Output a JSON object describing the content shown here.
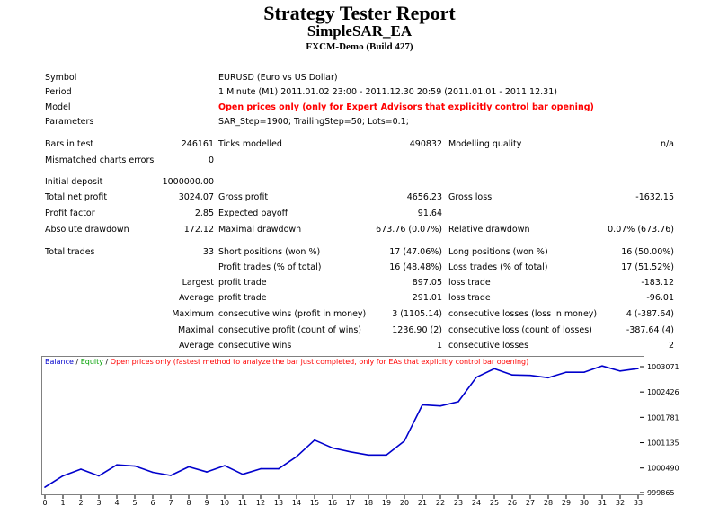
{
  "header": {
    "title": "Strategy Tester Report",
    "ea_name": "SimpleSAR_EA",
    "server": "FXCM-Demo (Build 427)"
  },
  "info": {
    "symbol_label": "Symbol",
    "symbol_value": "EURUSD (Euro vs US Dollar)",
    "period_label": "Period",
    "period_value": "1 Minute (M1) 2011.01.02 23:00 - 2011.12.30 20:59 (2011.01.01 - 2011.12.31)",
    "model_label": "Model",
    "model_value": "Open prices only (only for Expert Advisors that explicitly control bar opening)",
    "parameters_label": "Parameters",
    "parameters_value": "SAR_Step=1900; TrailingStep=50; Lots=0.1;"
  },
  "stats": {
    "bars_in_test_label": "Bars in test",
    "bars_in_test": "246161",
    "ticks_modelled_label": "Ticks modelled",
    "ticks_modelled": "490832",
    "modelling_quality_label": "Modelling quality",
    "modelling_quality": "n/a",
    "mismatched_label": "Mismatched charts errors",
    "mismatched": "0",
    "initial_deposit_label": "Initial deposit",
    "initial_deposit": "1000000.00",
    "total_net_profit_label": "Total net profit",
    "total_net_profit": "3024.07",
    "gross_profit_label": "Gross profit",
    "gross_profit": "4656.23",
    "gross_loss_label": "Gross loss",
    "gross_loss": "-1632.15",
    "profit_factor_label": "Profit factor",
    "profit_factor": "2.85",
    "expected_payoff_label": "Expected payoff",
    "expected_payoff": "91.64",
    "absolute_drawdown_label": "Absolute drawdown",
    "absolute_drawdown": "172.12",
    "maximal_drawdown_label": "Maximal drawdown",
    "maximal_drawdown": "673.76 (0.07%)",
    "relative_drawdown_label": "Relative drawdown",
    "relative_drawdown": "0.07% (673.76)",
    "total_trades_label": "Total trades",
    "total_trades": "33",
    "short_positions_label": "Short positions (won %)",
    "short_positions": "17 (47.06%)",
    "long_positions_label": "Long positions (won %)",
    "long_positions": "16 (50.00%)",
    "profit_trades_label": "Profit trades (% of total)",
    "profit_trades": "16 (48.48%)",
    "loss_trades_label": "Loss trades (% of total)",
    "loss_trades": "17 (51.52%)",
    "largest_label": "Largest",
    "largest_profit_label": "profit trade",
    "largest_profit": "897.05",
    "largest_loss_label": "loss trade",
    "largest_loss": "-183.12",
    "average_label": "Average",
    "average_profit_label": "profit trade",
    "average_profit": "291.01",
    "average_loss_label": "loss trade",
    "average_loss": "-96.01",
    "maximum_label": "Maximum",
    "max_cons_wins_label": "consecutive wins (profit in money)",
    "max_cons_wins": "3 (1105.14)",
    "max_cons_losses_label": "consecutive losses (loss in money)",
    "max_cons_losses": "4 (-387.64)",
    "maximal_label": "Maximal",
    "maximal_cons_profit_label": "consecutive profit (count of wins)",
    "maximal_cons_profit": "1236.90 (2)",
    "maximal_cons_loss_label": "consecutive loss (count of losses)",
    "maximal_cons_loss": "-387.64 (4)",
    "average2_label": "Average",
    "avg_cons_wins_label": "consecutive wins",
    "avg_cons_wins": "1",
    "avg_cons_losses_label": "consecutive losses",
    "avg_cons_losses": "2"
  },
  "legend": {
    "balance": "Balance",
    "sep1": " / ",
    "equity": "Equity",
    "sep2": " / ",
    "mode": "Open prices only (fastest method to analyze the bar just completed, only for EAs that explicitly control bar opening)"
  },
  "colors": {
    "balance": "#0000cc",
    "equity": "#00a000",
    "mode": "#ff0000",
    "model_text": "#ff0000"
  },
  "chart_data": {
    "type": "line",
    "series": [
      {
        "name": "Balance",
        "x": [
          0,
          1,
          2,
          3,
          4,
          5,
          6,
          7,
          8,
          9,
          10,
          11,
          12,
          13,
          14,
          15,
          16,
          17,
          18,
          19,
          20,
          21,
          22,
          23,
          24,
          25,
          26,
          27,
          28,
          29,
          30,
          31,
          32,
          33
        ],
        "values": [
          1000000.0,
          1000290.0,
          1000460.0,
          1000290.0,
          1000570.0,
          1000540.0,
          1000380.0,
          1000300.0,
          1000520.0,
          1000390.0,
          1000550.0,
          1000330.0,
          1000470.0,
          1000470.0,
          1000780.0,
          1001200.0,
          1001000.0,
          1000900.0,
          1000820.0,
          1000820.0,
          1001180.0,
          1002100.0,
          1002070.0,
          1002180.0,
          1002800.0,
          1003020.0,
          1002860.0,
          1002850.0,
          1002790.0,
          1002930.0,
          1002930.0,
          1003090.0,
          1002960.0,
          1003024.07
        ]
      }
    ],
    "x_ticks": [
      "0",
      "1",
      "2",
      "3",
      "4",
      "5",
      "6",
      "7",
      "8",
      "9",
      "10",
      "11",
      "12",
      "13",
      "14",
      "15",
      "16",
      "17",
      "18",
      "19",
      "20",
      "21",
      "22",
      "23",
      "24",
      "25",
      "26",
      "27",
      "28",
      "29",
      "30",
      "31",
      "32",
      "33"
    ],
    "y_ticks": [
      {
        "value": 999865,
        "label": "999865"
      },
      {
        "value": 1000490,
        "label": "1000490"
      },
      {
        "value": 1001135,
        "label": "1001135"
      },
      {
        "value": 1001781,
        "label": "1001781"
      },
      {
        "value": 1002426,
        "label": "1002426"
      },
      {
        "value": 1003071,
        "label": "1003071"
      }
    ],
    "xlim": [
      0,
      33
    ],
    "ylim": [
      999865,
      1003071
    ],
    "grid": false
  }
}
